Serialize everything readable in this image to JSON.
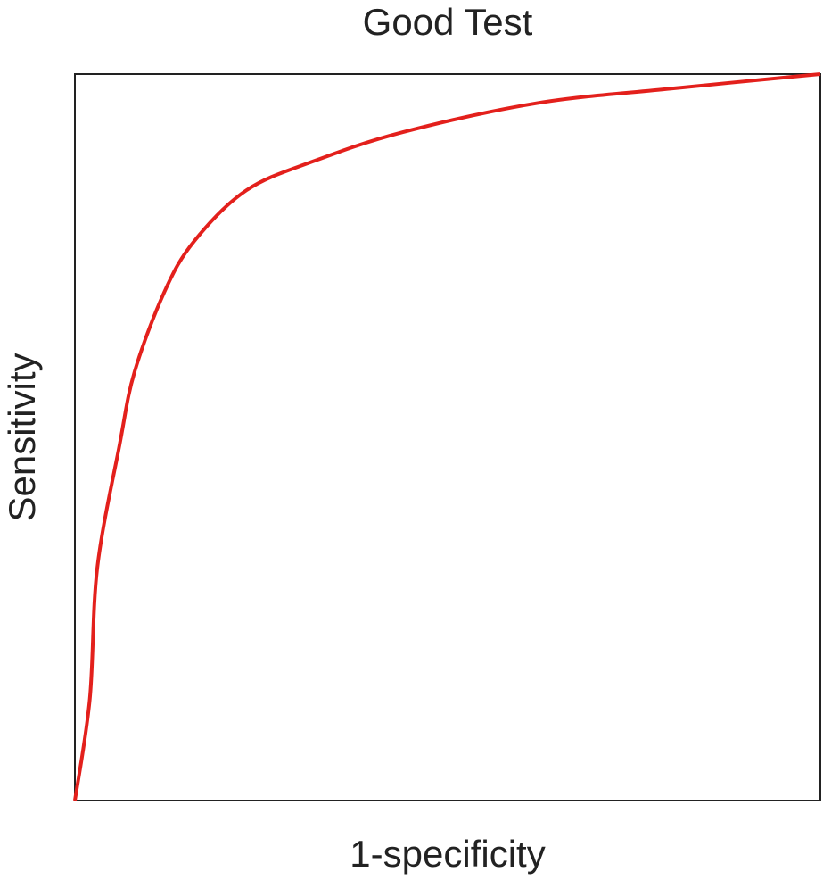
{
  "chart_data": {
    "type": "line",
    "title": "Good Test",
    "x_label": "1-specificity",
    "y_label": "Sensitivity",
    "x": [
      0,
      0.02,
      0.03,
      0.06,
      0.08,
      0.12,
      0.16,
      0.23,
      0.32,
      0.44,
      0.62,
      0.8,
      1
    ],
    "values": [
      0,
      0.14,
      0.32,
      0.49,
      0.59,
      0.7,
      0.77,
      0.84,
      0.88,
      0.92,
      0.96,
      0.98,
      1
    ],
    "color": "#e3201c",
    "xlim": [
      0,
      1
    ],
    "ylim": [
      0,
      1
    ]
  }
}
